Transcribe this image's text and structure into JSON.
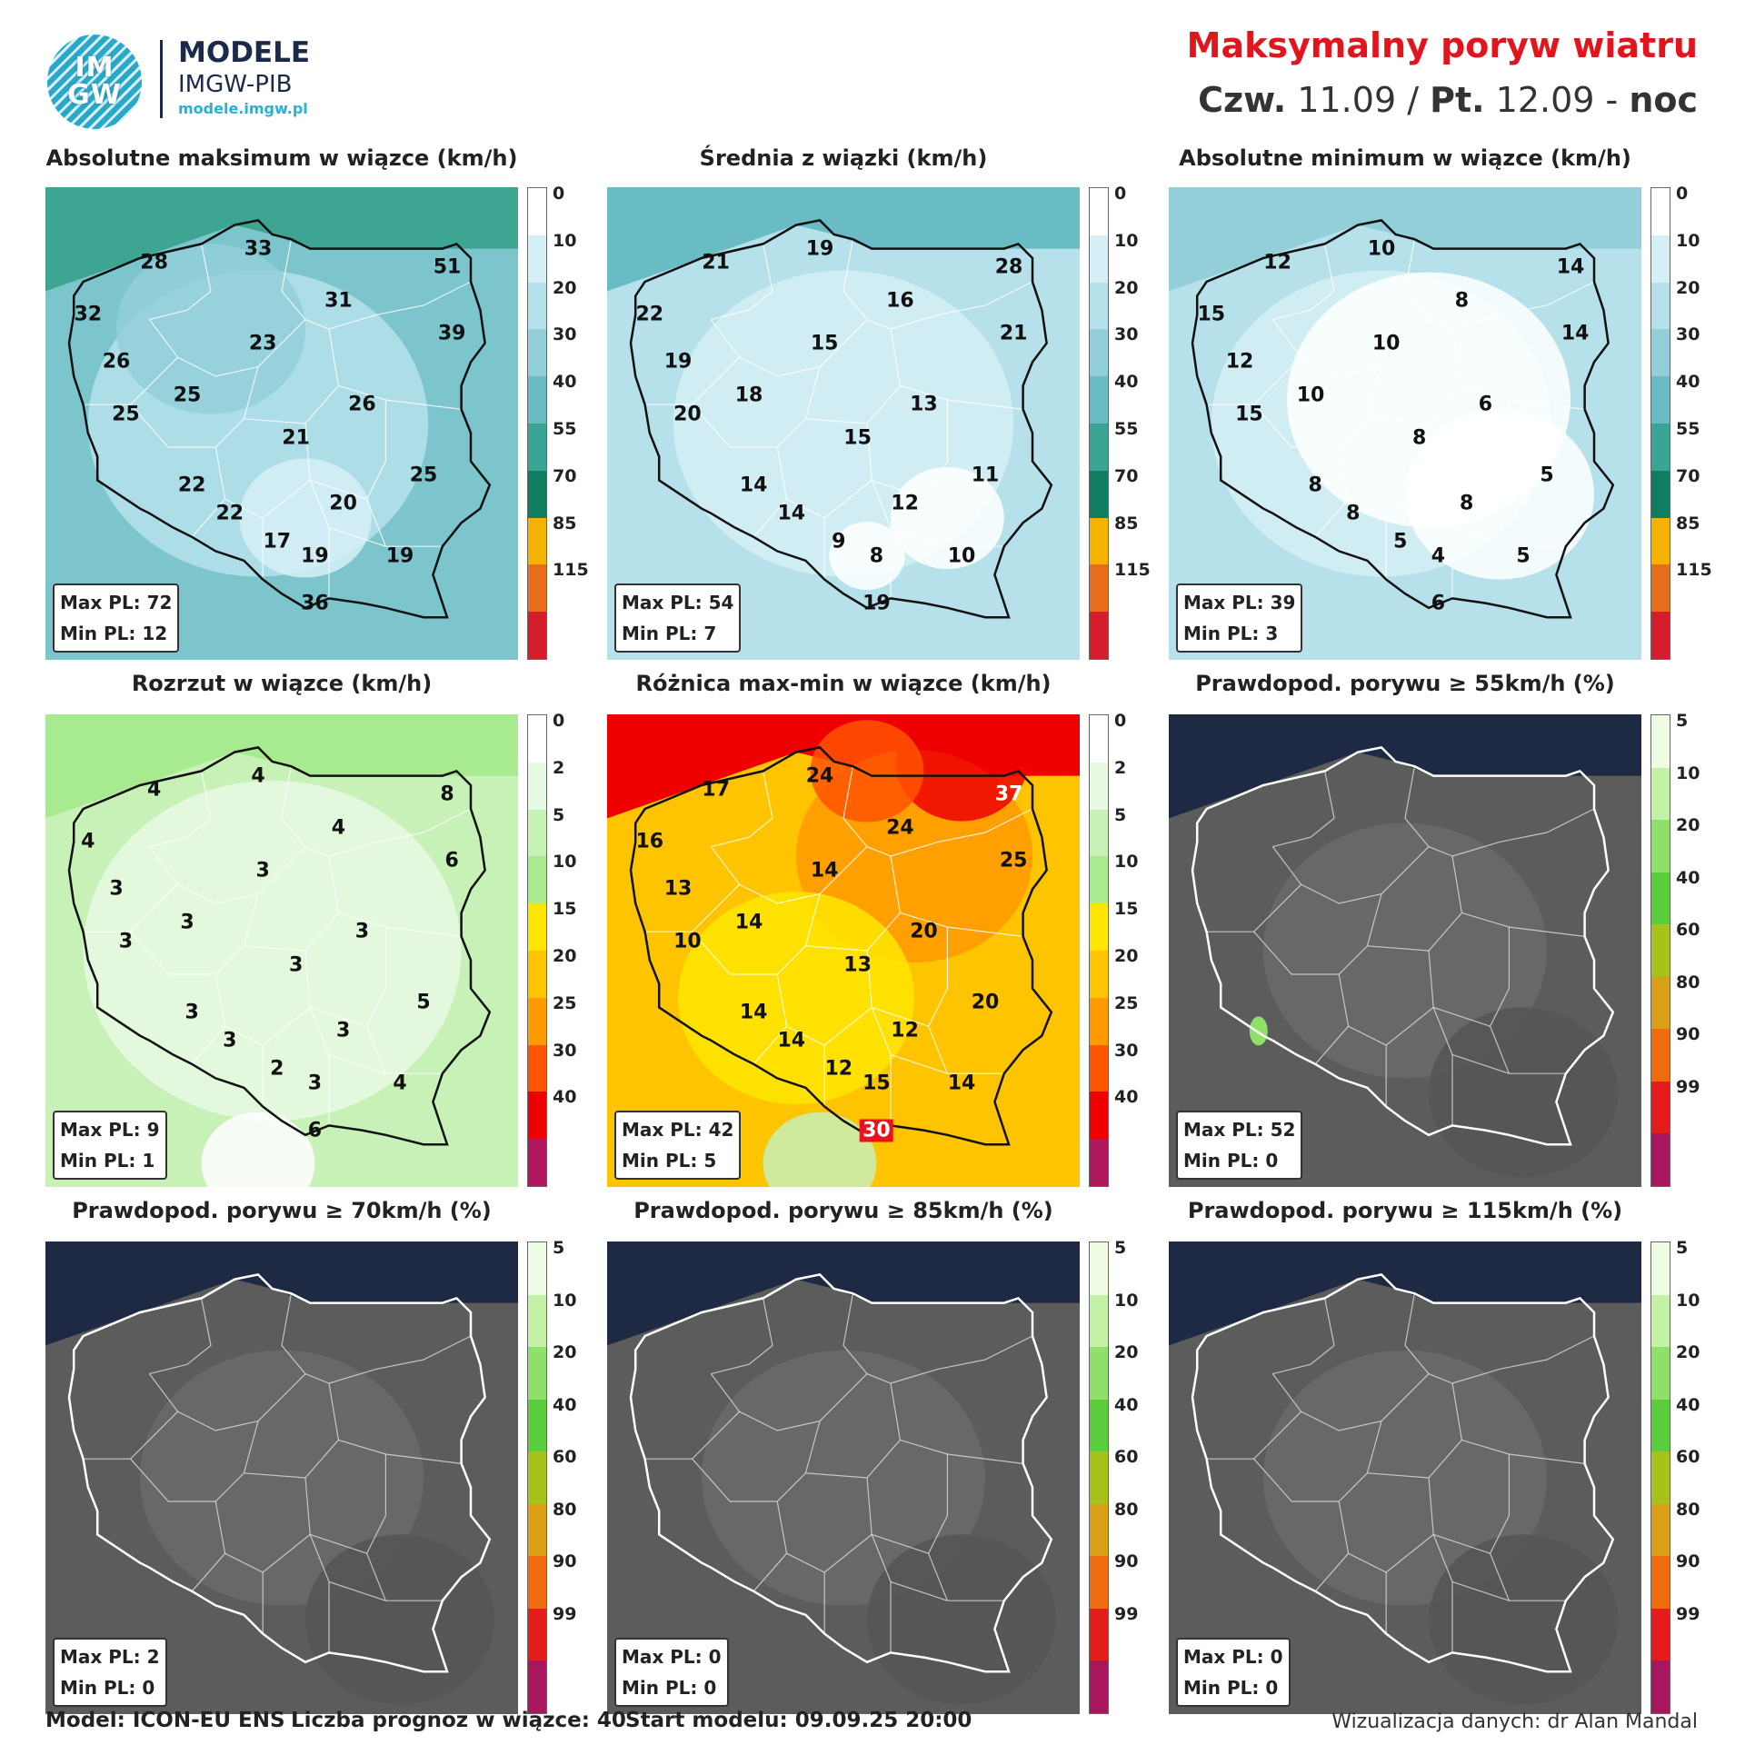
{
  "header": {
    "logo_text_1": "IM",
    "logo_text_2": "GW",
    "brand_title": "MODELE",
    "brand_sub": "IMGW-PIB",
    "brand_url": "modele.imgw.pl",
    "title": "Maksymalny poryw wiatru",
    "day1": "Czw.",
    "date1": "11.09 /",
    "day2": "Pt.",
    "date2": "12.09 -",
    "period": "noc"
  },
  "legends": {
    "wind": {
      "ticks": [
        "0",
        "10",
        "20",
        "30",
        "40",
        "55",
        "70",
        "85",
        "115"
      ],
      "colors": [
        "#ffffff",
        "#d6eef6",
        "#b6e0ea",
        "#93cfd9",
        "#69bcc4",
        "#3aa595",
        "#0f7d60",
        "#f5b300",
        "#e66d1c",
        "#d51e2b"
      ]
    },
    "spread": {
      "ticks": [
        "0",
        "2",
        "5",
        "10",
        "15",
        "20",
        "25",
        "30",
        "40"
      ],
      "colors": [
        "#ffffff",
        "#e8f9e2",
        "#c8f1b8",
        "#a8ea90",
        "#ffe600",
        "#ffc400",
        "#ff9a00",
        "#ff5400",
        "#ee0000",
        "#b0185d"
      ]
    },
    "prob": {
      "ticks": [
        "5",
        "10",
        "20",
        "40",
        "60",
        "80",
        "90",
        "99"
      ],
      "colors": [
        "#effce4",
        "#c3f1a5",
        "#8fe06b",
        "#5bcc3b",
        "#a7c21b",
        "#d89f17",
        "#ee6b10",
        "#e51c1c",
        "#a8175e"
      ]
    }
  },
  "panels": [
    {
      "title": "Absolutne maksimum w wiązce (km/h)",
      "legend": "wind",
      "bg": "wind",
      "max": "Max PL: 72",
      "min": "Min PL: 12",
      "labels": [
        [
          "33",
          0.45,
          0.13
        ],
        [
          "28",
          0.23,
          0.16
        ],
        [
          "51",
          0.85,
          0.17
        ],
        [
          "32",
          0.09,
          0.27
        ],
        [
          "31",
          0.62,
          0.24
        ],
        [
          "39",
          0.86,
          0.31
        ],
        [
          "26",
          0.15,
          0.37
        ],
        [
          "23",
          0.46,
          0.33
        ],
        [
          "25",
          0.3,
          0.44
        ],
        [
          "26",
          0.67,
          0.46
        ],
        [
          "25",
          0.17,
          0.48
        ],
        [
          "21",
          0.53,
          0.53
        ],
        [
          "25",
          0.8,
          0.61
        ],
        [
          "22",
          0.31,
          0.63
        ],
        [
          "20",
          0.63,
          0.67
        ],
        [
          "22",
          0.39,
          0.69
        ],
        [
          "17",
          0.49,
          0.75
        ],
        [
          "19",
          0.57,
          0.78
        ],
        [
          "19",
          0.75,
          0.78
        ],
        [
          "36",
          0.57,
          0.88
        ]
      ]
    },
    {
      "title": "Średnia z wiązki (km/h)",
      "legend": "wind",
      "bg": "windlow",
      "max": "Max PL: 54",
      "min": "Min PL: 7",
      "labels": [
        [
          "19",
          0.45,
          0.13
        ],
        [
          "21",
          0.23,
          0.16
        ],
        [
          "28",
          0.85,
          0.17
        ],
        [
          "22",
          0.09,
          0.27
        ],
        [
          "16",
          0.62,
          0.24
        ],
        [
          "21",
          0.86,
          0.31
        ],
        [
          "19",
          0.15,
          0.37
        ],
        [
          "15",
          0.46,
          0.33
        ],
        [
          "18",
          0.3,
          0.44
        ],
        [
          "13",
          0.67,
          0.46
        ],
        [
          "20",
          0.17,
          0.48
        ],
        [
          "15",
          0.53,
          0.53
        ],
        [
          "11",
          0.8,
          0.61
        ],
        [
          "14",
          0.31,
          0.63
        ],
        [
          "12",
          0.63,
          0.67
        ],
        [
          "14",
          0.39,
          0.69
        ],
        [
          "9",
          0.49,
          0.75
        ],
        [
          "8",
          0.57,
          0.78
        ],
        [
          "10",
          0.75,
          0.78
        ],
        [
          "19",
          0.57,
          0.88
        ]
      ]
    },
    {
      "title": "Absolutne minimum w wiązce (km/h)",
      "legend": "wind",
      "bg": "windmin",
      "max": "Max PL: 39",
      "min": "Min PL: 3",
      "labels": [
        [
          "10",
          0.45,
          0.13
        ],
        [
          "12",
          0.23,
          0.16
        ],
        [
          "14",
          0.85,
          0.17
        ],
        [
          "15",
          0.09,
          0.27
        ],
        [
          "8",
          0.62,
          0.24
        ],
        [
          "14",
          0.86,
          0.31
        ],
        [
          "12",
          0.15,
          0.37
        ],
        [
          "10",
          0.46,
          0.33
        ],
        [
          "10",
          0.3,
          0.44
        ],
        [
          "6",
          0.67,
          0.46
        ],
        [
          "15",
          0.17,
          0.48
        ],
        [
          "8",
          0.53,
          0.53
        ],
        [
          "5",
          0.8,
          0.61
        ],
        [
          "8",
          0.31,
          0.63
        ],
        [
          "8",
          0.63,
          0.67
        ],
        [
          "8",
          0.39,
          0.69
        ],
        [
          "5",
          0.49,
          0.75
        ],
        [
          "4",
          0.57,
          0.78
        ],
        [
          "5",
          0.75,
          0.78
        ],
        [
          "6",
          0.57,
          0.88
        ]
      ]
    },
    {
      "title": "Rozrzut w wiązce (km/h)",
      "legend": "spread",
      "bg": "spread",
      "max": "Max PL: 9",
      "min": "Min PL: 1",
      "labels": [
        [
          "4",
          0.45,
          0.13
        ],
        [
          "4",
          0.23,
          0.16
        ],
        [
          "8",
          0.85,
          0.17
        ],
        [
          "4",
          0.09,
          0.27
        ],
        [
          "4",
          0.62,
          0.24
        ],
        [
          "6",
          0.86,
          0.31
        ],
        [
          "3",
          0.15,
          0.37
        ],
        [
          "3",
          0.46,
          0.33
        ],
        [
          "3",
          0.3,
          0.44
        ],
        [
          "3",
          0.67,
          0.46
        ],
        [
          "3",
          0.17,
          0.48
        ],
        [
          "3",
          0.53,
          0.53
        ],
        [
          "5",
          0.8,
          0.61
        ],
        [
          "3",
          0.31,
          0.63
        ],
        [
          "3",
          0.63,
          0.67
        ],
        [
          "3",
          0.39,
          0.69
        ],
        [
          "2",
          0.49,
          0.75
        ],
        [
          "3",
          0.57,
          0.78
        ],
        [
          "4",
          0.75,
          0.78
        ],
        [
          "6",
          0.57,
          0.88
        ]
      ]
    },
    {
      "title": "Różnica max-min w wiązce (km/h)",
      "legend": "spread",
      "bg": "diff",
      "max": "Max PL: 42",
      "min": "Min PL: 5",
      "labels": [
        [
          "24",
          0.45,
          0.13
        ],
        [
          "17",
          0.23,
          0.16
        ],
        [
          "37",
          0.85,
          0.17,
          "w"
        ],
        [
          "16",
          0.09,
          0.27
        ],
        [
          "24",
          0.62,
          0.24
        ],
        [
          "25",
          0.86,
          0.31
        ],
        [
          "13",
          0.15,
          0.37
        ],
        [
          "14",
          0.46,
          0.33
        ],
        [
          "14",
          0.3,
          0.44
        ],
        [
          "20",
          0.67,
          0.46
        ],
        [
          "10",
          0.17,
          0.48
        ],
        [
          "13",
          0.53,
          0.53
        ],
        [
          "20",
          0.8,
          0.61
        ],
        [
          "14",
          0.31,
          0.63
        ],
        [
          "12",
          0.63,
          0.67
        ],
        [
          "14",
          0.39,
          0.69
        ],
        [
          "12",
          0.49,
          0.75
        ],
        [
          "15",
          0.57,
          0.78
        ],
        [
          "14",
          0.75,
          0.78
        ],
        [
          "30",
          0.57,
          0.88,
          "box"
        ]
      ]
    },
    {
      "title": "Prawdopod. porywu ≥ 55km/h (%)",
      "legend": "prob",
      "bg": "dark",
      "max": "Max PL: 52",
      "min": "Min PL: 0",
      "labels": []
    },
    {
      "title": "Prawdopod. porywu ≥ 70km/h (%)",
      "legend": "prob",
      "bg": "dark",
      "max": "Max PL: 2",
      "min": "Min PL: 0",
      "labels": []
    },
    {
      "title": "Prawdopod. porywu ≥ 85km/h (%)",
      "legend": "prob",
      "bg": "dark",
      "max": "Max PL: 0",
      "min": "Min PL: 0",
      "labels": []
    },
    {
      "title": "Prawdopod. porywu ≥ 115km/h (%)",
      "legend": "prob",
      "bg": "dark",
      "max": "Max PL: 0",
      "min": "Min PL: 0",
      "labels": []
    }
  ],
  "footer": {
    "model": "Model: ICON-EU ENS",
    "members": "Liczba prognoz w wiązce: 40",
    "start": "Start modelu: 09.09.25 20:00",
    "credit": "Wizualizacja danych: dr Alan Mandal"
  }
}
